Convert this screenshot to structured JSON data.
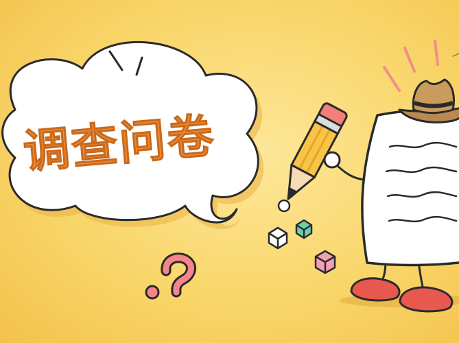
{
  "banner": {
    "title": "调查问卷"
  },
  "icons": [
    "speech-bubble-icon",
    "pencil-icon",
    "document-character-icon",
    "cowboy-hat-icon",
    "question-mark-icon",
    "cube-icon"
  ],
  "colors": {
    "background": "#f9d66a",
    "title": "#ee8a35",
    "question_mark": "#f4868b",
    "shoes": "#e9584e",
    "hat": "#b98950",
    "cube_green": "#6ecfb0",
    "cube_pink": "#f59fb5"
  }
}
